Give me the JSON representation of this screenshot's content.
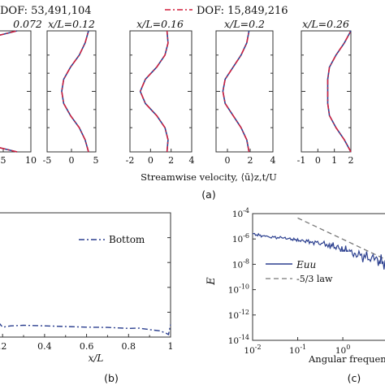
{
  "legend": {
    "series": [
      {
        "name": "DOF: 53,491,104",
        "color": "#2b3f8f",
        "dash": "solid"
      },
      {
        "name": "DOF: 15,849,216",
        "color": "#d21f3c",
        "dash": "dashdot"
      }
    ]
  },
  "panel_a": {
    "xlabel": "Streamwise velocity, ⟨ū⟩z,t/U",
    "caption": "(a)",
    "stations": [
      {
        "title": "0.072",
        "xticks": [
          "5",
          "10"
        ]
      },
      {
        "title": "x/L=0.12",
        "xticks": [
          "-5",
          "0",
          "5"
        ]
      },
      {
        "title": "x/L=0.16",
        "xticks": [
          "-2",
          "0",
          "2",
          "4"
        ]
      },
      {
        "title": "x/L=0.2",
        "xticks": [
          "0",
          "2",
          "4"
        ]
      },
      {
        "title": "x/L=0.26",
        "xticks": [
          "-1",
          "0",
          "1",
          "2"
        ]
      }
    ]
  },
  "panel_b": {
    "caption": "(b)",
    "xlabel": "x/L",
    "xticks": [
      ".2",
      "0.4",
      "0.6",
      "0.8",
      "1"
    ],
    "legend": "Bottom"
  },
  "panel_c": {
    "caption": "(c)",
    "ylabel": "E",
    "xlabel": "Angular frequency",
    "yticks": [
      "10-4",
      "10-6",
      "10-8",
      "10-10",
      "10-12",
      "10-14"
    ],
    "xticks": [
      "10-2",
      "10-1",
      "100"
    ],
    "legend": [
      "Euu",
      "-5/3 law"
    ]
  },
  "chart_data": [
    {
      "type": "line",
      "panel": "a",
      "xlabel": "Streamwise velocity, ⟨ū⟩z,t/U",
      "profiles": [
        {
          "title": "0.072",
          "xlim": [
            0,
            10
          ],
          "y": [
            0.0,
            0.05,
            0.1,
            0.2,
            0.35,
            0.5,
            0.65,
            0.8,
            0.9,
            0.95,
            1.0
          ],
          "u": [
            7.5,
            3.0,
            0.6,
            0.2,
            0.1,
            0.1,
            0.1,
            0.2,
            0.6,
            3.0,
            7.5
          ]
        },
        {
          "title": "x/L=0.12",
          "xlim": [
            -5,
            5
          ],
          "y": [
            0.0,
            0.1,
            0.2,
            0.3,
            0.4,
            0.5,
            0.6,
            0.7,
            0.8,
            0.9,
            1.0
          ],
          "u": [
            3.5,
            2.8,
            1.6,
            -0.2,
            -1.6,
            -2.0,
            -1.6,
            -0.2,
            1.6,
            2.8,
            3.5
          ]
        },
        {
          "title": "x/L=0.16",
          "xlim": [
            -2,
            4
          ],
          "y": [
            0.0,
            0.1,
            0.2,
            0.3,
            0.4,
            0.5,
            0.6,
            0.7,
            0.8,
            0.9,
            1.0
          ],
          "u": [
            1.6,
            1.7,
            1.4,
            0.6,
            -0.5,
            -1.0,
            -0.5,
            0.6,
            1.4,
            1.7,
            1.6
          ]
        },
        {
          "title": "x/L=0.2",
          "xlim": [
            -1,
            4
          ],
          "y": [
            0.0,
            0.1,
            0.2,
            0.3,
            0.4,
            0.5,
            0.6,
            0.7,
            0.8,
            0.9,
            1.0
          ],
          "u": [
            1.9,
            1.7,
            1.2,
            0.5,
            -0.2,
            -0.4,
            -0.2,
            0.5,
            1.2,
            1.7,
            1.9
          ]
        },
        {
          "title": "x/L=0.26",
          "xlim": [
            -1,
            2
          ],
          "y": [
            0.0,
            0.1,
            0.2,
            0.3,
            0.4,
            0.5,
            0.6,
            0.7,
            0.8,
            0.9,
            1.0
          ],
          "u": [
            2.0,
            1.6,
            1.1,
            0.7,
            0.6,
            0.6,
            0.6,
            0.7,
            1.1,
            1.6,
            2.0
          ]
        }
      ]
    },
    {
      "type": "line",
      "panel": "b",
      "xlabel": "x/L",
      "xlim": [
        0.18,
        1.0
      ],
      "ylim": [
        0,
        1
      ],
      "series": [
        {
          "name": "Bottom",
          "x": [
            0.18,
            0.2,
            0.24,
            0.3,
            0.4,
            0.5,
            0.6,
            0.7,
            0.8,
            0.85,
            0.9,
            0.95,
            0.98,
            0.99,
            1.0
          ],
          "y": [
            0.12,
            0.08,
            0.09,
            0.095,
            0.09,
            0.085,
            0.08,
            0.078,
            0.07,
            0.072,
            0.06,
            0.05,
            0.03,
            0.02,
            0.1
          ]
        }
      ]
    },
    {
      "type": "line",
      "panel": "c",
      "scale": "log-log",
      "xlabel": "Angular frequency",
      "ylabel": "E",
      "xlim": [
        0.01,
        10
      ],
      "ylim": [
        1e-14,
        0.0001
      ],
      "series": [
        {
          "name": "Euu",
          "x": [
            0.01,
            0.02,
            0.05,
            0.1,
            0.2,
            0.5,
            1,
            2,
            5,
            10
          ],
          "y": [
            2.5e-06,
            1.5e-06,
            1.2e-06,
            8e-07,
            6e-07,
            3.5e-07,
            1.5e-07,
            6e-08,
            2.5e-08,
            1e-08
          ]
        },
        {
          "name": "-5/3 law",
          "x": [
            0.1,
            10
          ],
          "y": [
            4.5e-05,
            2e-08
          ]
        }
      ]
    }
  ]
}
